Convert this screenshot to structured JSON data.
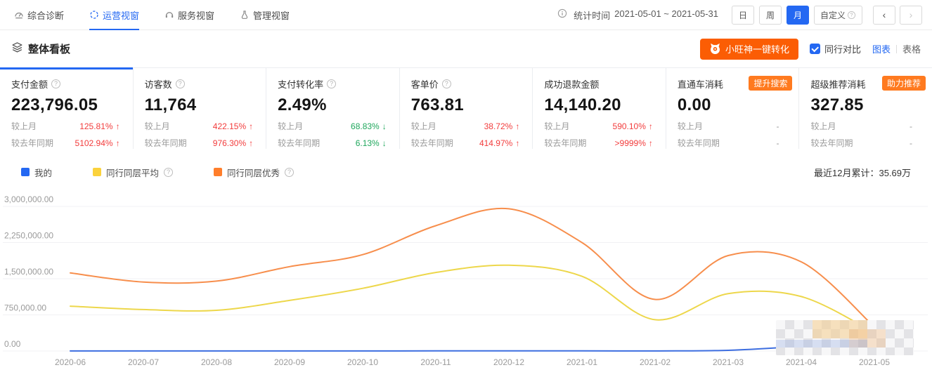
{
  "colors": {
    "accent_blue": "#2468F2",
    "up_red": "#f23c3c",
    "down_green": "#1fa75c",
    "button_orange": "#fb5d04",
    "badge_orange": "#FF7A1F"
  },
  "topnav": {
    "tabs": [
      {
        "label": "综合诊断",
        "icon": "gauge-icon",
        "active": false
      },
      {
        "label": "运营视窗",
        "icon": "cycle-icon",
        "active": true
      },
      {
        "label": "服务视窗",
        "icon": "headset-icon",
        "active": false
      },
      {
        "label": "管理视窗",
        "icon": "flask-icon",
        "active": false
      }
    ],
    "info_icon": "info-circle-icon",
    "stat_time_label": "统计时间",
    "stat_time_range": "2021-05-01 ~ 2021-05-31",
    "period_buttons": [
      {
        "label": "日",
        "active": false,
        "help_icon": false
      },
      {
        "label": "周",
        "active": false,
        "help_icon": false
      },
      {
        "label": "月",
        "active": true,
        "help_icon": false
      },
      {
        "label": "自定义",
        "active": false,
        "help_icon": true
      }
    ],
    "pager": {
      "prev": "‹",
      "next": "›"
    }
  },
  "board_header": {
    "icon": "layers-icon",
    "title": "整体看板",
    "convert_button_label": "小旺神一键转化",
    "convert_button_icon": "mascot-cat-icon",
    "peer_compare": {
      "label": "同行对比",
      "checked": true
    },
    "view_switch": {
      "chart_label": "图表",
      "table_label": "表格",
      "active": "chart"
    }
  },
  "compare_row_labels": {
    "mom": "较上月",
    "yoy": "较去年同期"
  },
  "metrics": [
    {
      "title": "支付金额",
      "help_icon": true,
      "badge": "",
      "value": "223,796.05",
      "active": true,
      "mom": {
        "value": "125.81%",
        "dir": "up"
      },
      "yoy": {
        "value": "5102.94%",
        "dir": "up"
      }
    },
    {
      "title": "访客数",
      "help_icon": true,
      "badge": "",
      "value": "11,764",
      "active": false,
      "mom": {
        "value": "422.15%",
        "dir": "up"
      },
      "yoy": {
        "value": "976.30%",
        "dir": "up"
      }
    },
    {
      "title": "支付转化率",
      "help_icon": true,
      "badge": "",
      "value": "2.49%",
      "active": false,
      "mom": {
        "value": "68.83%",
        "dir": "down"
      },
      "yoy": {
        "value": "6.13%",
        "dir": "down"
      }
    },
    {
      "title": "客单价",
      "help_icon": true,
      "badge": "",
      "value": "763.81",
      "active": false,
      "mom": {
        "value": "38.72%",
        "dir": "up"
      },
      "yoy": {
        "value": "414.97%",
        "dir": "up"
      }
    },
    {
      "title": "成功退款金额",
      "help_icon": false,
      "badge": "",
      "value": "14,140.20",
      "active": false,
      "mom": {
        "value": "590.10%",
        "dir": "up"
      },
      "yoy": {
        "value": ">9999%",
        "dir": "up"
      }
    },
    {
      "title": "直通车消耗",
      "help_icon": false,
      "badge": "提升搜索",
      "value": "0.00",
      "active": false,
      "mom": {
        "value": "-",
        "dir": "none"
      },
      "yoy": {
        "value": "-",
        "dir": "none"
      }
    },
    {
      "title": "超级推荐消耗",
      "help_icon": false,
      "badge": "助力推荐",
      "value": "327.85",
      "active": false,
      "mom": {
        "value": "-",
        "dir": "none"
      },
      "yoy": {
        "value": "-",
        "dir": "none"
      }
    }
  ],
  "legend": {
    "items": [
      {
        "label": "我的",
        "help_icon": false,
        "color": "#2468F2"
      },
      {
        "label": "同行同层平均",
        "help_icon": true,
        "color": "#FBD23C"
      },
      {
        "label": "同行同层优秀",
        "help_icon": true,
        "color": "#FF7E2B"
      }
    ],
    "summary": "最近12月累计：35.69万"
  },
  "chart_data": {
    "type": "line",
    "x": [
      "2020-06",
      "2020-07",
      "2020-08",
      "2020-09",
      "2020-10",
      "2020-11",
      "2020-12",
      "2021-01",
      "2021-02",
      "2021-03",
      "2021-04",
      "2021-05"
    ],
    "series": [
      {
        "name": "我的",
        "color": "#3D6EE0",
        "values": [
          2000,
          1500,
          1200,
          1500,
          1800,
          2500,
          4000,
          3000,
          2000,
          15000,
          100000,
          223796
        ]
      },
      {
        "name": "同行同层平均",
        "color": "#EDD74B",
        "values": [
          930000,
          860000,
          845000,
          1050000,
          1300000,
          1630000,
          1780000,
          1550000,
          650000,
          1190000,
          1130000,
          380000
        ]
      },
      {
        "name": "同行同层优秀",
        "color": "#F78E4C",
        "values": [
          1620000,
          1430000,
          1450000,
          1750000,
          2000000,
          2600000,
          2950000,
          2250000,
          1070000,
          1980000,
          1850000,
          500000
        ]
      }
    ],
    "ylim": [
      0,
      3000000
    ],
    "y_ticks": [
      {
        "value": 0,
        "label": "0.00"
      },
      {
        "value": 750000,
        "label": "750,000.00"
      },
      {
        "value": 1500000,
        "label": "1,500,000.00"
      },
      {
        "value": 2250000,
        "label": "2,250,000.00"
      },
      {
        "value": 3000000,
        "label": "3,000,000.00"
      }
    ],
    "grid": true,
    "legend_position": "top-left",
    "annotations": [
      {
        "type": "mosaic-censor",
        "x_range": [
          "2021-04",
          "2021-05"
        ],
        "description": "line endpoints obscured by pixelated mosaic"
      }
    ]
  }
}
